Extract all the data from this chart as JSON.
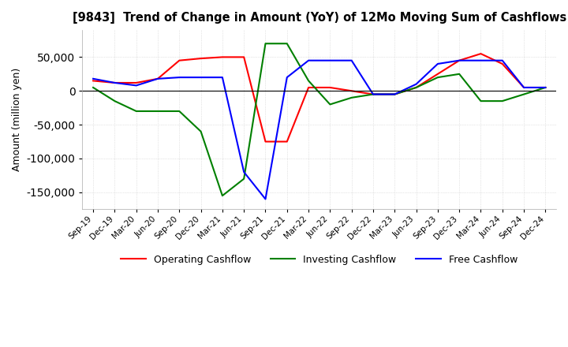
{
  "title": "[9843]  Trend of Change in Amount (YoY) of 12Mo Moving Sum of Cashflows",
  "ylabel": "Amount (million yen)",
  "x_labels": [
    "Sep-19",
    "Dec-19",
    "Mar-20",
    "Jun-20",
    "Sep-20",
    "Dec-20",
    "Mar-21",
    "Jun-21",
    "Sep-21",
    "Dec-21",
    "Mar-22",
    "Jun-22",
    "Sep-22",
    "Dec-22",
    "Mar-23",
    "Jun-23",
    "Sep-23",
    "Dec-23",
    "Mar-24",
    "Jun-24",
    "Sep-24",
    "Dec-24"
  ],
  "operating_cashflow": [
    15000,
    12000,
    12000,
    18000,
    45000,
    48000,
    50000,
    50000,
    -75000,
    -75000,
    5000,
    5000,
    0,
    -5000,
    -5000,
    5000,
    25000,
    45000,
    55000,
    40000,
    5000,
    5000
  ],
  "investing_cashflow": [
    5000,
    -15000,
    -30000,
    -30000,
    -30000,
    -60000,
    -155000,
    -130000,
    70000,
    70000,
    15000,
    -20000,
    -10000,
    -5000,
    -5000,
    5000,
    20000,
    25000,
    -15000,
    -15000,
    -5000,
    5000
  ],
  "free_cashflow": [
    18000,
    12000,
    8000,
    18000,
    20000,
    20000,
    20000,
    -120000,
    -160000,
    20000,
    45000,
    45000,
    45000,
    -5000,
    -5000,
    10000,
    40000,
    45000,
    45000,
    45000,
    5000,
    5000
  ],
  "operating_color": "#ff0000",
  "investing_color": "#008000",
  "free_color": "#0000ff",
  "ylim": [
    -175000,
    90000
  ],
  "yticks": [
    -150000,
    -100000,
    -50000,
    0,
    50000
  ],
  "background_color": "#ffffff",
  "grid_color": "#cccccc"
}
